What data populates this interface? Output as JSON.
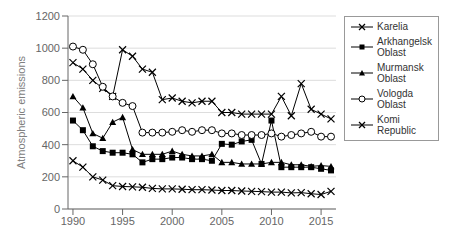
{
  "chart_data": {
    "type": "line",
    "ylabel": "Atmospheric emissions",
    "x": [
      1990,
      1991,
      1992,
      1993,
      1994,
      1995,
      1996,
      1997,
      1998,
      1999,
      2000,
      2001,
      2002,
      2003,
      2004,
      2005,
      2006,
      2007,
      2008,
      2009,
      2010,
      2011,
      2012,
      2013,
      2014,
      2015,
      2016
    ],
    "series": [
      {
        "name": "Karelia",
        "color": "#000000",
        "marker": "x",
        "values": [
          910,
          870,
          800,
          750,
          700,
          990,
          950,
          870,
          850,
          680,
          690,
          670,
          660,
          670,
          670,
          600,
          600,
          590,
          590,
          590,
          590,
          700,
          580,
          780,
          620,
          590,
          560
        ]
      },
      {
        "name": "Arkhangelsk\nOblast",
        "color": "#000000",
        "marker": "square",
        "values": [
          550,
          490,
          390,
          360,
          350,
          350,
          340,
          290,
          310,
          310,
          320,
          320,
          310,
          310,
          300,
          405,
          400,
          420,
          430,
          280,
          550,
          260,
          260,
          260,
          260,
          250,
          240
        ]
      },
      {
        "name": "Murmansk\nOblast",
        "color": "#000000",
        "marker": "triangle",
        "values": [
          700,
          630,
          470,
          440,
          540,
          570,
          370,
          340,
          340,
          340,
          360,
          340,
          330,
          330,
          340,
          290,
          290,
          280,
          280,
          280,
          290,
          290,
          275,
          275,
          265,
          270,
          265
        ]
      },
      {
        "name": "Vologda\nOblast",
        "color": "#000000",
        "marker": "circle",
        "values": [
          1010,
          990,
          900,
          760,
          700,
          660,
          640,
          475,
          475,
          475,
          480,
          490,
          480,
          490,
          490,
          470,
          470,
          460,
          460,
          460,
          470,
          450,
          460,
          470,
          480,
          450,
          450
        ]
      },
      {
        "name": "Komi\nRepublic",
        "color": "#000000",
        "marker": "x",
        "values": [
          300,
          260,
          200,
          180,
          145,
          140,
          138,
          135,
          128,
          125,
          125,
          123,
          120,
          120,
          118,
          115,
          115,
          112,
          110,
          108,
          105,
          105,
          100,
          102,
          95,
          90,
          110
        ]
      }
    ],
    "xlim": [
      1989.5,
      2016.5
    ],
    "xticks": [
      1990,
      1995,
      2000,
      2005,
      2010,
      2015
    ],
    "ylim": [
      0,
      1200
    ],
    "yticks": [
      0,
      200,
      400,
      600,
      800,
      1000,
      1200
    ],
    "grid": "y",
    "legend": "right"
  }
}
